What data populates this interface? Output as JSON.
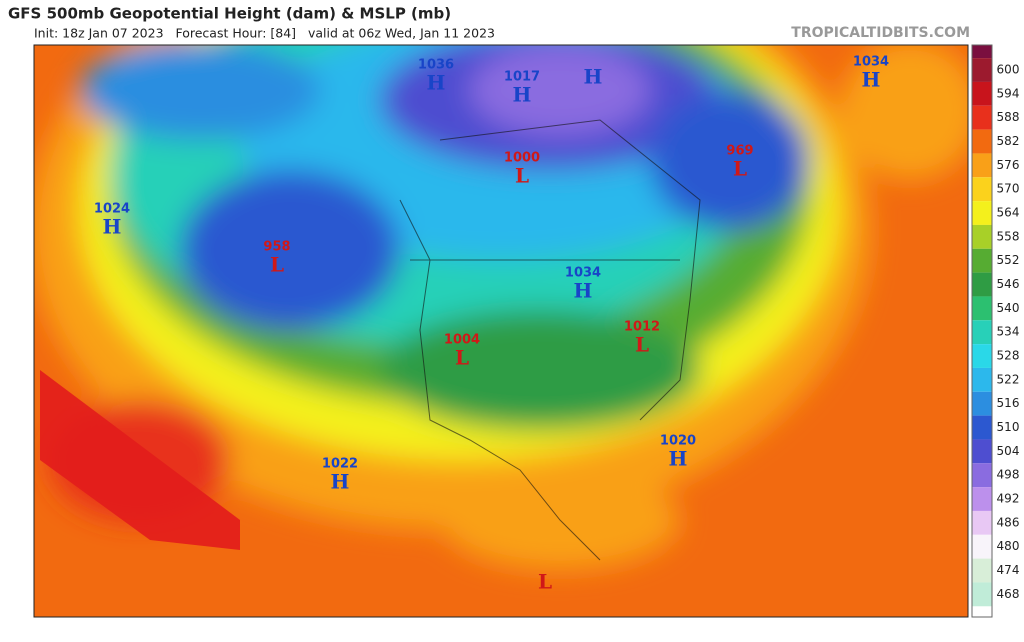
{
  "header": {
    "title": "GFS 500mb Geopotential Height (dam) & MSLP (mb)",
    "subtitle": "Init: 18z Jan 07 2023   Forecast Hour: [84]   valid at 06z Wed, Jan 11 2023",
    "source": "TROPICALTIDBITS.COM"
  },
  "colorbar": {
    "levels": [
      {
        "value": 600,
        "color": "#9c1a2e"
      },
      {
        "value": 594,
        "color": "#c8141c"
      },
      {
        "value": 588,
        "color": "#e8301c"
      },
      {
        "value": 582,
        "color": "#f26a10"
      },
      {
        "value": 576,
        "color": "#f9a018"
      },
      {
        "value": 570,
        "color": "#fbd21c"
      },
      {
        "value": 564,
        "color": "#f4f01c"
      },
      {
        "value": 558,
        "color": "#a8d028"
      },
      {
        "value": 552,
        "color": "#56ac32"
      },
      {
        "value": 546,
        "color": "#2f9c44"
      },
      {
        "value": 540,
        "color": "#2cc070"
      },
      {
        "value": 534,
        "color": "#28d0b8"
      },
      {
        "value": 528,
        "color": "#2ad8e8"
      },
      {
        "value": 522,
        "color": "#2cb8ec"
      },
      {
        "value": 516,
        "color": "#2c8ee0"
      },
      {
        "value": 510,
        "color": "#2c58d0"
      },
      {
        "value": 504,
        "color": "#4e4ed0"
      },
      {
        "value": 498,
        "color": "#8a6ce0"
      },
      {
        "value": 492,
        "color": "#bc90ec"
      },
      {
        "value": 486,
        "color": "#e8c8f4"
      },
      {
        "value": 480,
        "color": "#f8f4fa"
      },
      {
        "value": 474,
        "color": "#d8eed8"
      },
      {
        "value": 468,
        "color": "#c0ecd8"
      }
    ]
  },
  "pressure_centers": [
    {
      "letter": "H",
      "value": 1036
    },
    {
      "letter": "H",
      "value": 1017
    },
    {
      "letter": "H"
    },
    {
      "letter": "H",
      "value": 1034
    },
    {
      "letter": "L",
      "value": 969
    },
    {
      "letter": "L",
      "value": 1000
    },
    {
      "letter": "H",
      "value": 1024
    },
    {
      "letter": "L",
      "value": 958
    },
    {
      "letter": "H",
      "value": 1034
    },
    {
      "letter": "L",
      "value": 1004
    },
    {
      "letter": "L",
      "value": 1012
    },
    {
      "letter": "H",
      "value": 1020
    },
    {
      "letter": "H",
      "value": 1022
    },
    {
      "letter": "L"
    }
  ]
}
